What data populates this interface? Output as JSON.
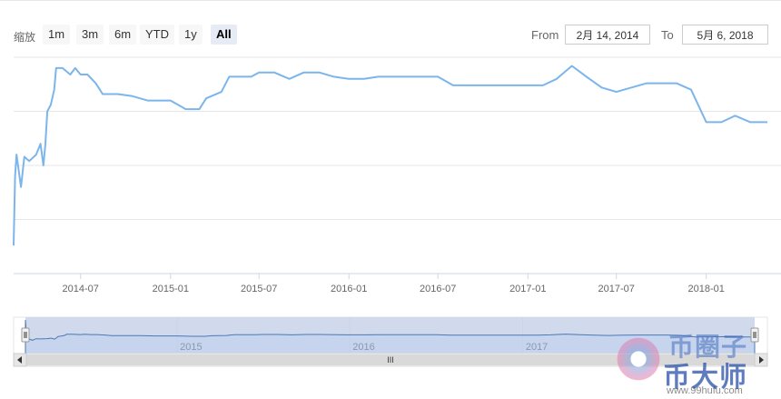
{
  "toolbar": {
    "zoom_label": "缩放",
    "ranges": [
      "1m",
      "3m",
      "6m",
      "YTD",
      "1y",
      "All"
    ],
    "active_range": "All",
    "from_label": "From",
    "from_value": "2月 14, 2014",
    "to_label": "To",
    "to_value": "5月 6, 2018"
  },
  "navigator": {
    "year_labels": [
      "2015",
      "2016",
      "2017"
    ],
    "scrollbar_grip": "III"
  },
  "watermark": {
    "brand_top": "币圈子",
    "brand_main": "币大师",
    "url": "www.99hufu.com"
  },
  "colors": {
    "series": "#7cb5ec",
    "navigator_mask": "#ccd6eb",
    "gridline": "#e6e6e6"
  },
  "chart_data": {
    "type": "line",
    "title": "",
    "xlabel": "",
    "ylabel": "",
    "x_range": [
      "2014-02-14",
      "2018-05-06"
    ],
    "x_tick_labels": [
      "2014-07",
      "2015-01",
      "2015-07",
      "2016-01",
      "2016-07",
      "2017-01",
      "2017-07",
      "2018-01"
    ],
    "y_tick_labels_shown": false,
    "y_gridlines": 4,
    "y_range": [
      0,
      100
    ],
    "series": [
      {
        "name": "",
        "points": [
          [
            "2014-02-14",
            13
          ],
          [
            "2014-02-17",
            45
          ],
          [
            "2014-02-20",
            55
          ],
          [
            "2014-03-01",
            40
          ],
          [
            "2014-03-08",
            54
          ],
          [
            "2014-03-18",
            52
          ],
          [
            "2014-04-01",
            55
          ],
          [
            "2014-04-10",
            60
          ],
          [
            "2014-04-16",
            50
          ],
          [
            "2014-04-20",
            60
          ],
          [
            "2014-04-24",
            75
          ],
          [
            "2014-05-01",
            78
          ],
          [
            "2014-05-08",
            85
          ],
          [
            "2014-05-12",
            95
          ],
          [
            "2014-05-25",
            95
          ],
          [
            "2014-06-10",
            92
          ],
          [
            "2014-06-20",
            95
          ],
          [
            "2014-07-01",
            92
          ],
          [
            "2014-07-15",
            92
          ],
          [
            "2014-08-01",
            88
          ],
          [
            "2014-08-15",
            83
          ],
          [
            "2014-09-15",
            83
          ],
          [
            "2014-10-15",
            82
          ],
          [
            "2014-11-15",
            80
          ],
          [
            "2014-12-15",
            80
          ],
          [
            "2015-01-01",
            80
          ],
          [
            "2015-02-01",
            76
          ],
          [
            "2015-03-01",
            76
          ],
          [
            "2015-03-15",
            81
          ],
          [
            "2015-04-15",
            84
          ],
          [
            "2015-05-01",
            91
          ],
          [
            "2015-06-15",
            91
          ],
          [
            "2015-07-01",
            93
          ],
          [
            "2015-08-01",
            93
          ],
          [
            "2015-09-01",
            90
          ],
          [
            "2015-10-01",
            93
          ],
          [
            "2015-11-01",
            93
          ],
          [
            "2015-12-01",
            91
          ],
          [
            "2016-01-01",
            90
          ],
          [
            "2016-02-01",
            90
          ],
          [
            "2016-03-01",
            91
          ],
          [
            "2016-04-01",
            91
          ],
          [
            "2016-05-01",
            91
          ],
          [
            "2016-06-01",
            91
          ],
          [
            "2016-07-01",
            91
          ],
          [
            "2016-08-01",
            87
          ],
          [
            "2016-09-01",
            87
          ],
          [
            "2016-10-01",
            87
          ],
          [
            "2016-11-01",
            87
          ],
          [
            "2016-12-01",
            87
          ],
          [
            "2017-01-01",
            87
          ],
          [
            "2017-02-01",
            87
          ],
          [
            "2017-03-01",
            90
          ],
          [
            "2017-04-01",
            96
          ],
          [
            "2017-05-01",
            91
          ],
          [
            "2017-06-01",
            86
          ],
          [
            "2017-07-01",
            84
          ],
          [
            "2017-08-01",
            86
          ],
          [
            "2017-09-01",
            88
          ],
          [
            "2017-10-01",
            88
          ],
          [
            "2017-11-01",
            88
          ],
          [
            "2017-12-01",
            85
          ],
          [
            "2018-01-01",
            70
          ],
          [
            "2018-02-01",
            70
          ],
          [
            "2018-03-01",
            73
          ],
          [
            "2018-04-01",
            70
          ],
          [
            "2018-05-06",
            70
          ]
        ]
      }
    ],
    "legend": "none"
  }
}
